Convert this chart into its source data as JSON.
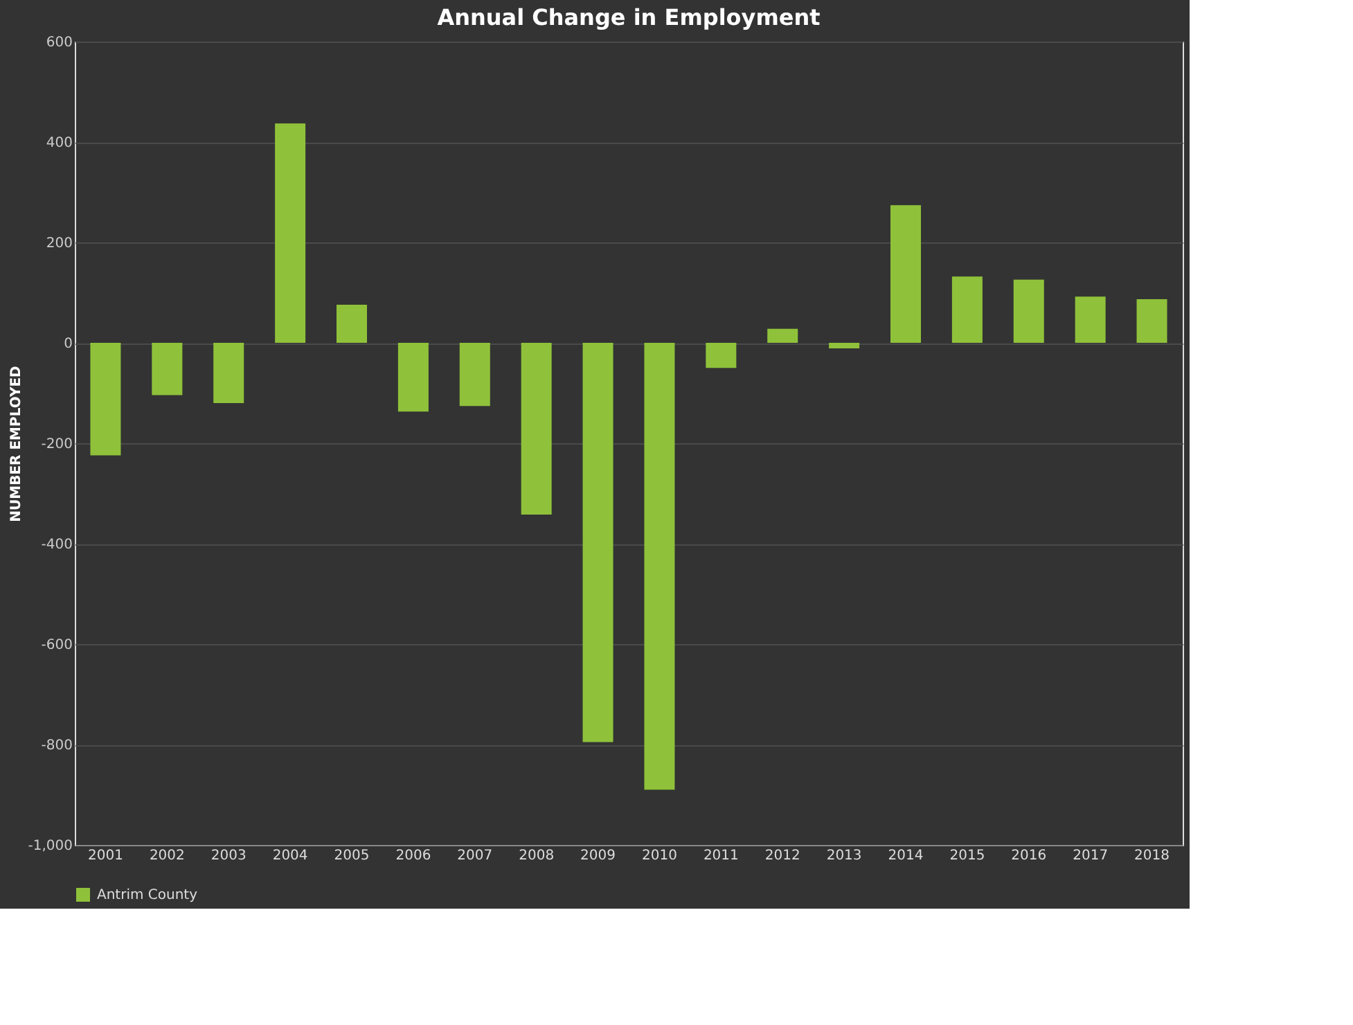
{
  "chart_data": {
    "type": "bar",
    "title": "Annual Change in Employment",
    "ylabel": "NUMBER EMPLOYED",
    "categories": [
      "2001",
      "2002",
      "2003",
      "2004",
      "2005",
      "2006",
      "2007",
      "2008",
      "2009",
      "2010",
      "2011",
      "2012",
      "2013",
      "2014",
      "2015",
      "2016",
      "2017",
      "2018"
    ],
    "series": [
      {
        "name": "Antrim County",
        "color": "#8fc23a",
        "values": [
          -224,
          -104,
          -120,
          437,
          76,
          -137,
          -126,
          -342,
          -795,
          -890,
          -50,
          28,
          -11,
          274,
          132,
          126,
          92,
          87
        ]
      }
    ],
    "ylim": [
      -1000,
      600
    ],
    "yticks": [
      600,
      400,
      200,
      0,
      -200,
      -400,
      -600,
      -800,
      {
        "value": -1000,
        "label": "-1,000"
      }
    ],
    "grid": "y",
    "legend": "bottom"
  }
}
